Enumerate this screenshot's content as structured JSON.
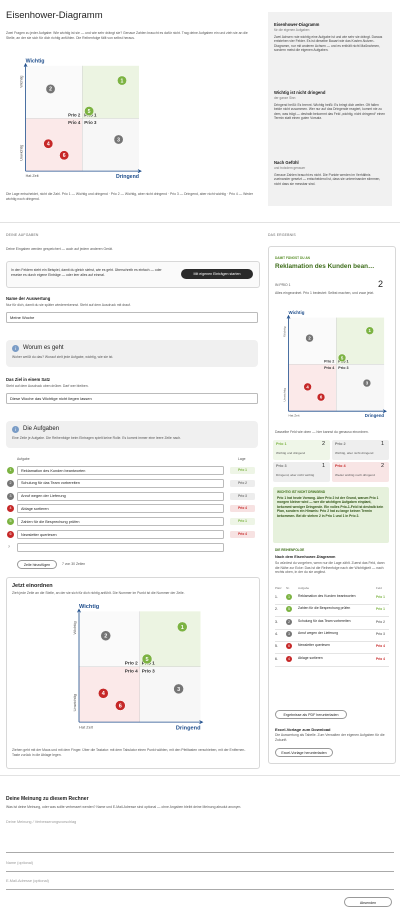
{
  "header": {
    "title": "Eisenhower-Diagramm",
    "intro": "Zwei Fragen zu jeder Aufgabe: Wie wichtig ist sie — und wie sehr drängt sie? Genaue Zahlen braucht es dafür nicht. Trag deine Aufgaben ein und zieh sie an die Stelle, an der sie sich für dich richtig anfühlen. Die Reihenfolge fällt von selbst heraus.",
    "caption": "Die Lage entscheidet, nicht die Zahl. Prio 1 — Wichtig und dringend · Prio 2 — Wichtig, aber nicht dringend · Prio 3 — Dringend, aber nicht wichtig · Prio 4 — Weder wichtig noch dringend."
  },
  "sidebar": {
    "items": [
      {
        "title": "Eisenhower-Diagramm",
        "sub": "für die eigenen Aufgaben",
        "text": "Zwei Achsen: wie wichtig eine Aufgabe ist und wie sehr sie drängt. Daraus entstehen vier Felder. Es ist dieselbe Bauart wie das Kosten-Nutzen-Diagramm, nur mit anderen Achsen — und es enthält nicht Maßnahmen, sondern meist die eigenen Aufgaben."
      },
      {
        "title": "Wichtig ist nicht dringend",
        "sub": "der ganze Sinn",
        "text": "Dringend heißt: Es brennt. Wichtig heißt: Es bringt dich weiter. Oft fallen beide nicht zusammen. Wer nur auf das Dringende reagiert, kommt nie zu dem, was trägt — deshalb bekommt das Feld „wichtig, nicht dringend“ einen Termin statt einen guten Vorsatz."
      },
      {
        "title": "Nach Gefühl",
        "sub": "und trotzdem genauer",
        "text": "Genaue Zahlen braucht es nicht. Die Punkte werden im Verhältnis zueinander gesetzt — entscheidend ist, dass sie untereinander stimmen, nicht dass sie messbar sind."
      }
    ]
  },
  "matrix": {
    "y_label": "Wichtig",
    "y_high": "Wichtig",
    "y_low": "Unwichtig",
    "x_low": "Hat Zeit",
    "x_label": "Dringend",
    "quadrants": [
      "Prio 2",
      "Prio 1",
      "Prio 4",
      "Prio 3"
    ],
    "xlim": [
      0,
      10
    ],
    "ylim": [
      0,
      10
    ],
    "points": [
      {
        "label": "1",
        "x": 8.5,
        "y": 8.6,
        "color": "#7cb342"
      },
      {
        "label": "2",
        "x": 2.2,
        "y": 7.8,
        "color": "#757575"
      },
      {
        "label": "3",
        "x": 8.2,
        "y": 3.0,
        "color": "#757575"
      },
      {
        "label": "4",
        "x": 2.0,
        "y": 2.6,
        "color": "#c62828"
      },
      {
        "label": "5",
        "x": 5.6,
        "y": 5.7,
        "color": "#7cb342"
      },
      {
        "label": "6",
        "x": 3.4,
        "y": 1.5,
        "color": "#c62828"
      }
    ]
  },
  "tasks": {
    "section": "DEINE AUFGABEN",
    "note": "Deine Eingaben werden gespeichert — auch auf jedem anderen Gerät.",
    "example_text": "In den Feldern steht ein Beispiel, damit du gleich siehst, wie es geht. Überschreib es einfach — oder ersetze es durch eigene Einträge — oder leer alles auf einmal.",
    "start_button": "Mit eigenen Einträgen starten",
    "name_label": "Name der Auswertung",
    "name_hint": "Nur für dich, damit du sie später wiedererkennst. Steht auf dem Ausdruck mit drauf.",
    "name_value": "Meine Woche",
    "about_icon": "i",
    "about_title": "Worum es geht",
    "about_text": "Woher weißt du das? Worauf zielt jede Aufgabe, wichtig, wie sie ist.",
    "goal_label": "Das Ziel in einem Satz",
    "goal_hint": "Steht auf dem Ausdruck oben drüber. Darf wer bleiben.",
    "goal_value": "Diese Woche das Wichtige nicht liegen lassen",
    "list_icon": "i",
    "list_title": "Die Aufgaben",
    "list_text": "Eine Zeile je Aufgabe. Die Reihenfolge beim Eintragen spielt keine Rolle. Es kommt immer eine leere Zeile nach.",
    "col_task": "Aufgabe",
    "col_prio": "Lage",
    "rows": [
      {
        "nr": "1",
        "task": "Reklamation des Kunden beantworten",
        "prio": "Prio 1",
        "color": "#7cb342"
      },
      {
        "nr": "2",
        "task": "Schulung für das Team vorbereiten",
        "prio": "Prio 2",
        "color": "#757575"
      },
      {
        "nr": "3",
        "task": "Anruf wegen der Lieferung",
        "prio": "Prio 3",
        "color": "#757575"
      },
      {
        "nr": "4",
        "task": "Ablage sortieren",
        "prio": "Prio 4",
        "color": "#c62828"
      },
      {
        "nr": "5",
        "task": "Zahlen für die Besprechung prüfen",
        "prio": "Prio 1",
        "color": "#7cb342"
      },
      {
        "nr": "6",
        "task": "Newsletter querlesen",
        "prio": "Prio 4",
        "color": "#c62828"
      }
    ],
    "empty_marker": "?",
    "add_button": "Zeile hinzufügen",
    "count": "7 von 30 Zeilen",
    "place_title": "Jetzt einordnen",
    "place_text": "Zieh jede Zeile an die Stelle, an der sie sich für dich richtig anfühlt. Die Nummer im Punkt ist die Nummer der Zeile.",
    "place_note": "Ziehen geht mit der Maus und mit dem Finger. Über die Tastatur: mit dem Tabulator einen Punkt wählen, mit den Pfeiltasten verschieben, mit der Entfernen-Taste zurück in die Ablage legen."
  },
  "result": {
    "section": "DAS ERGEBNIS",
    "kicker": "DAMIT FÄNGST DU AN",
    "top_task": "Reklamation des Kunden bean…",
    "prio_label": "IN PRIO 1",
    "prio_count": "2",
    "text": "Alles eingeordnet. Prio 1 bedeutet: Selbst machen, und zwar jetzt.",
    "matrix_caption": "Dasselbe Feld wie oben — hier kannst du genauso einordnen.",
    "quadrants": [
      {
        "name": "Prio 1",
        "count": "2",
        "desc": "Wichtig und dringend",
        "color": "#7cb342"
      },
      {
        "name": "Prio 2",
        "count": "1",
        "desc": "Wichtig, aber nicht dringend",
        "color": "#757575"
      },
      {
        "name": "Prio 3",
        "count": "1",
        "desc": "Dringend, aber nicht wichtig",
        "color": "#757575"
      },
      {
        "name": "Prio 4",
        "count": "2",
        "desc": "Weder wichtig noch dringend",
        "color": "#c62828"
      }
    ],
    "hint_title": "WICHTIG IST NICHT DRINGEND",
    "hint_text": "Prio 1 hat heute Vorrang. Aber Prio 2 ist der Grund, warum Prio 1 morgen kleiner wird — wer die wichtigen Aufgaben einplant, bekommt weniger Dringende. Ein volles Prio-1-Feld ist deshalb kein Plan, sondern ein Hinweis: Prio 2 hat zu lange keinen Termin bekommen. Bei dir stehen 2 in Prio 1 und 1 in Prio 2.",
    "order_title": "DIE REIHENFOLGE",
    "order_sub": "Nach dem Eisenhower-Diagramm",
    "order_text": "So würdest du vorgehen, wenn nur die Lage zählt. Zuerst das Feld, dann die Nähe zur Ecke: Das ist die Reihenfolge nach der Wichtigkeit — nach rechts oben, in der du sie angibst.",
    "cols": [
      "Platz",
      "Nr.",
      "Aufgabe",
      "Feld"
    ],
    "order": [
      {
        "place": "1.",
        "nr": "1",
        "task": "Reklamation des Kunden beantworten",
        "prio": "Prio 1",
        "color": "#7cb342"
      },
      {
        "place": "2.",
        "nr": "5",
        "task": "Zahlen für die Besprechung prüfen",
        "prio": "Prio 1",
        "color": "#7cb342"
      },
      {
        "place": "3.",
        "nr": "2",
        "task": "Schulung für das Team vorbereiten",
        "prio": "Prio 2",
        "color": "#757575"
      },
      {
        "place": "4.",
        "nr": "3",
        "task": "Anruf wegen der Lieferung",
        "prio": "Prio 3",
        "color": "#757575"
      },
      {
        "place": "5.",
        "nr": "6",
        "task": "Newsletter querlesen",
        "prio": "Prio 4",
        "color": "#c62828"
      },
      {
        "place": "6.",
        "nr": "4",
        "task": "Ablage sortieren",
        "prio": "Prio 4",
        "color": "#c62828"
      }
    ],
    "pdf_button": "Ergebnisse als PDF herunterladen",
    "excel_title": "Excel-Vorlage zum Download",
    "excel_text": "Die Auswertung als Tabelle. Zum Verwalten der eigenen Aufgaben für die Zukunft.",
    "excel_button": "Excel-Vorlage herunterladen"
  },
  "feedback": {
    "title": "Deine Meinung zu diesem Rechner",
    "text": "Was ist deine Meinung, oder was sollte verbessert werden? Name und E-Mail-Adresse sind optional — ohne Angaben bleibt deine Meinung absolut anonym.",
    "message_placeholder": "Deine Meinung / Verbesserungsvorschlag",
    "name_placeholder": "Name (optional)",
    "email_placeholder": "E-Mail-Adresse (optional)",
    "submit": "Absenden"
  }
}
